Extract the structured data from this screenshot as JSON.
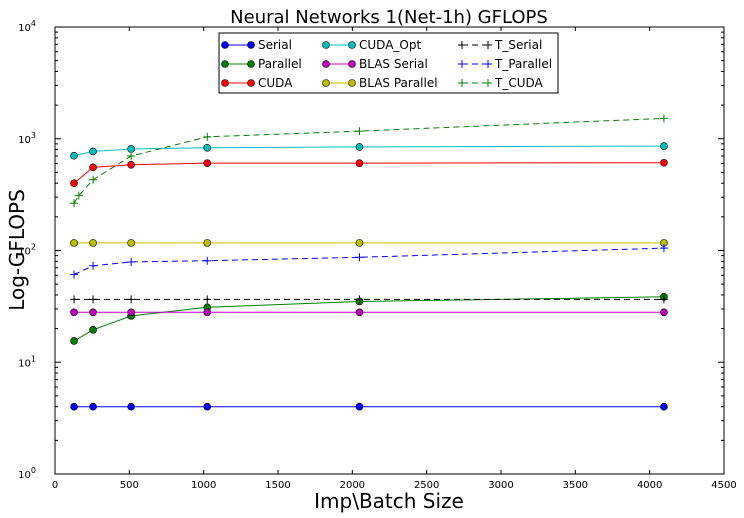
{
  "chart_data": {
    "type": "line",
    "title": "Neural Networks 1(Net-1h) GFLOPS",
    "xlabel": "Imp\\Batch Size",
    "ylabel": "Log-GFLOPS",
    "xlim": [
      0,
      4500
    ],
    "ylim": [
      1,
      10000
    ],
    "yscale": "log",
    "grid": false,
    "legend_position": "top-center",
    "x_ticks": [
      0,
      500,
      1000,
      1500,
      2000,
      2500,
      3000,
      3500,
      4000,
      4500
    ],
    "y_ticks": [
      {
        "value": 1,
        "base": "10",
        "exp": "0"
      },
      {
        "value": 10,
        "base": "10",
        "exp": "1"
      },
      {
        "value": 100,
        "base": "10",
        "exp": "2"
      },
      {
        "value": 1000,
        "base": "10",
        "exp": "3"
      },
      {
        "value": 10000,
        "base": "10",
        "exp": "4"
      }
    ],
    "x": [
      128,
      256,
      512,
      1024,
      2048,
      4096
    ],
    "series": [
      {
        "name": "Serial",
        "color": "#0000ff",
        "style": "solid",
        "marker": "circle",
        "values": [
          4,
          4,
          4,
          4,
          4,
          4
        ]
      },
      {
        "name": "Parallel",
        "color": "#008000",
        "style": "solid",
        "marker": "circle",
        "values": [
          15.5,
          19.5,
          26,
          31,
          35,
          38.5
        ]
      },
      {
        "name": "CUDA",
        "color": "#ff0000",
        "style": "solid",
        "marker": "circle",
        "values": [
          400,
          555,
          585,
          605,
          605,
          610
        ]
      },
      {
        "name": "CUDA_Opt",
        "color": "#00bfbf",
        "style": "solid",
        "marker": "circle",
        "values": [
          705,
          770,
          810,
          830,
          845,
          860
        ]
      },
      {
        "name": "BLAS Serial",
        "color": "#bf00bf",
        "style": "solid",
        "marker": "circle",
        "values": [
          28,
          28,
          28,
          28,
          28,
          28
        ]
      },
      {
        "name": "BLAS Parallel",
        "color": "#bfbf00",
        "style": "solid",
        "marker": "circle",
        "values": [
          117,
          117,
          117,
          117,
          117,
          117
        ]
      },
      {
        "name": "T_Serial",
        "color": "#000000",
        "style": "dashed",
        "marker": "plus",
        "x": [
          128,
          256,
          512,
          1024,
          2048,
          4096
        ],
        "values": [
          36.5,
          36.5,
          36.5,
          36.5,
          36.5,
          36.5
        ]
      },
      {
        "name": "T_Parallel",
        "color": "#0000ff",
        "style": "dashed",
        "marker": "plus",
        "x": [
          128,
          256,
          512,
          1024,
          2048,
          4096
        ],
        "values": [
          61,
          73,
          79,
          81,
          87,
          105
        ]
      },
      {
        "name": "T_CUDA",
        "color": "#008000",
        "style": "dashed",
        "marker": "plus",
        "x": [
          128,
          160,
          256,
          512,
          1024,
          2048,
          4096
        ],
        "values": [
          265,
          310,
          430,
          700,
          1040,
          1170,
          1520
        ]
      }
    ]
  }
}
